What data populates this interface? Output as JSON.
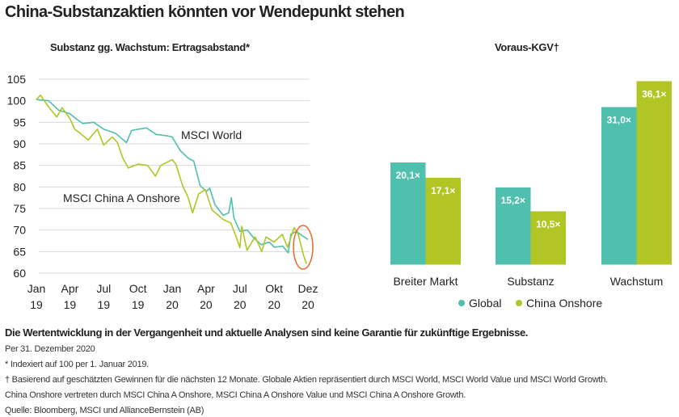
{
  "title": "China-Substanzaktien könnten vor Wendepunkt stehen",
  "colors": {
    "global": "#4fbfae",
    "china": "#b1c524",
    "highlight": "#e8692a",
    "grid": "#d8d8d8"
  },
  "chart_data": [
    {
      "type": "line",
      "title": "Substanz gg. Wachstum: Ertragsabstand*",
      "xlabel": "",
      "ylabel": "",
      "ylim": [
        60,
        105
      ],
      "yticks": [
        105,
        100,
        95,
        90,
        85,
        80,
        75,
        70,
        65,
        60
      ],
      "xlim": [
        "2019-01-01",
        "2020-12-31"
      ],
      "xticks": [
        {
          "top": "Jan",
          "bottom": "19",
          "date": "2019-01-01"
        },
        {
          "top": "Apr",
          "bottom": "19",
          "date": "2019-04-01"
        },
        {
          "top": "Jul",
          "bottom": "19",
          "date": "2019-07-01"
        },
        {
          "top": "Oct",
          "bottom": "19",
          "date": "2019-10-01"
        },
        {
          "top": "Jan",
          "bottom": "20",
          "date": "2020-01-01"
        },
        {
          "top": "Apr",
          "bottom": "20",
          "date": "2020-04-01"
        },
        {
          "top": "Jul",
          "bottom": "20",
          "date": "2020-07-01"
        },
        {
          "top": "Okt",
          "bottom": "20",
          "date": "2020-10-01"
        },
        {
          "top": "Dez",
          "bottom": "20",
          "date": "2020-12-31"
        }
      ],
      "grid": true,
      "annotation": "highlight-ellipse-end-2020",
      "series": [
        {
          "name": "MSCI World",
          "color": "#4fbfae",
          "points": [
            [
              "2019-01-01",
              100.3
            ],
            [
              "2019-02-03",
              100.0
            ],
            [
              "2019-03-02",
              97.8
            ],
            [
              "2019-04-01",
              97.0
            ],
            [
              "2019-04-21",
              95.6
            ],
            [
              "2019-05-06",
              94.7
            ],
            [
              "2019-06-04",
              95.0
            ],
            [
              "2019-07-01",
              93.4
            ],
            [
              "2019-08-01",
              92.5
            ],
            [
              "2019-08-31",
              90.3
            ],
            [
              "2019-09-14",
              93.1
            ],
            [
              "2019-10-01",
              93.4
            ],
            [
              "2019-10-24",
              93.7
            ],
            [
              "2019-11-19",
              92.2
            ],
            [
              "2019-12-17",
              91.9
            ],
            [
              "2020-01-01",
              91.6
            ],
            [
              "2020-01-23",
              88.4
            ],
            [
              "2020-02-14",
              86.6
            ],
            [
              "2020-02-28",
              86.0
            ],
            [
              "2020-03-16",
              80.3
            ],
            [
              "2020-04-02",
              79.0
            ],
            [
              "2020-04-11",
              79.7
            ],
            [
              "2020-04-25",
              75.9
            ],
            [
              "2020-05-17",
              73.4
            ],
            [
              "2020-06-01",
              74.0
            ],
            [
              "2020-06-08",
              77.5
            ],
            [
              "2020-06-15",
              72.8
            ],
            [
              "2020-07-01",
              69.7
            ],
            [
              "2020-07-21",
              70.0
            ],
            [
              "2020-08-05",
              68.4
            ],
            [
              "2020-08-27",
              66.6
            ],
            [
              "2020-09-18",
              67.2
            ],
            [
              "2020-10-02",
              66.0
            ],
            [
              "2020-10-24",
              66.3
            ],
            [
              "2020-11-08",
              64.7
            ],
            [
              "2020-11-15",
              69.0
            ],
            [
              "2020-11-30",
              69.7
            ],
            [
              "2020-12-14",
              68.8
            ],
            [
              "2020-12-31",
              67.8
            ]
          ]
        },
        {
          "name": "MSCI China A Onshore",
          "color": "#b1c524",
          "points": [
            [
              "2019-01-01",
              100.3
            ],
            [
              "2019-01-12",
              101.3
            ],
            [
              "2019-01-30",
              99.0
            ],
            [
              "2019-02-25",
              96.2
            ],
            [
              "2019-03-11",
              98.4
            ],
            [
              "2019-04-01",
              95.9
            ],
            [
              "2019-04-14",
              93.4
            ],
            [
              "2019-04-28",
              92.5
            ],
            [
              "2019-05-20",
              90.9
            ],
            [
              "2019-06-14",
              93.4
            ],
            [
              "2019-07-01",
              89.7
            ],
            [
              "2019-07-24",
              91.6
            ],
            [
              "2019-08-07",
              90.3
            ],
            [
              "2019-08-22",
              86.6
            ],
            [
              "2019-09-05",
              84.4
            ],
            [
              "2019-10-01",
              85.3
            ],
            [
              "2019-10-27",
              85.0
            ],
            [
              "2019-11-17",
              82.5
            ],
            [
              "2019-12-01",
              85.0
            ],
            [
              "2020-01-01",
              86.3
            ],
            [
              "2020-01-11",
              85.3
            ],
            [
              "2020-01-29",
              80.3
            ],
            [
              "2020-02-12",
              77.8
            ],
            [
              "2020-02-25",
              74.0
            ],
            [
              "2020-03-12",
              78.4
            ],
            [
              "2020-03-30",
              79.4
            ],
            [
              "2020-04-17",
              74.7
            ],
            [
              "2020-05-16",
              72.5
            ],
            [
              "2020-06-07",
              71.6
            ],
            [
              "2020-06-21",
              68.4
            ],
            [
              "2020-07-01",
              65.9
            ],
            [
              "2020-07-06",
              70.9
            ],
            [
              "2020-07-20",
              65.3
            ],
            [
              "2020-08-11",
              68.4
            ],
            [
              "2020-08-29",
              65.0
            ],
            [
              "2020-09-09",
              68.4
            ],
            [
              "2020-10-01",
              67.2
            ],
            [
              "2020-10-23",
              69.0
            ],
            [
              "2020-11-06",
              66.0
            ],
            [
              "2020-11-24",
              70.6
            ],
            [
              "2020-12-05",
              69.0
            ],
            [
              "2020-12-19",
              64.1
            ],
            [
              "2020-12-27",
              62.2
            ]
          ]
        }
      ]
    },
    {
      "type": "bar",
      "title": "Voraus-KGV†",
      "categories": [
        "Breiter Markt",
        "Substanz",
        "Wachstum"
      ],
      "legend": "bottom",
      "ylim": [
        0,
        36.1
      ],
      "series": [
        {
          "name": "Global",
          "color": "#4fbfae",
          "values": [
            20.1,
            15.2,
            31.0
          ],
          "labels": [
            "20,1×",
            "15,2×",
            "31,0×"
          ]
        },
        {
          "name": "China Onshore",
          "color": "#b1c524",
          "values": [
            17.1,
            10.5,
            36.1
          ],
          "labels": [
            "17,1×",
            "10,5×",
            "36,1×"
          ]
        }
      ]
    }
  ],
  "footer": {
    "disclaimer": "Die Wertentwicklung in der Vergangenheit und aktuelle Analysen sind keine Garantie für zukünftige Ergebnisse.",
    "notes": [
      "Per 31. Dezember 2020",
      "* Indexiert auf 100 per 1. Januar 2019.",
      "† Basierend auf geschätzten Gewinnen für die nächsten 12 Monate. Globale Aktien repräsentiert durch MSCI World, MSCI World Value und MSCI World Growth.",
      "China Onshore vertreten durch MSCI China A Onshore, MSCI China A Onshore Value und MSCI China A Onshore Growth.",
      "Quelle: Bloomberg, MSCI und AllianceBernstein (AB)"
    ]
  }
}
